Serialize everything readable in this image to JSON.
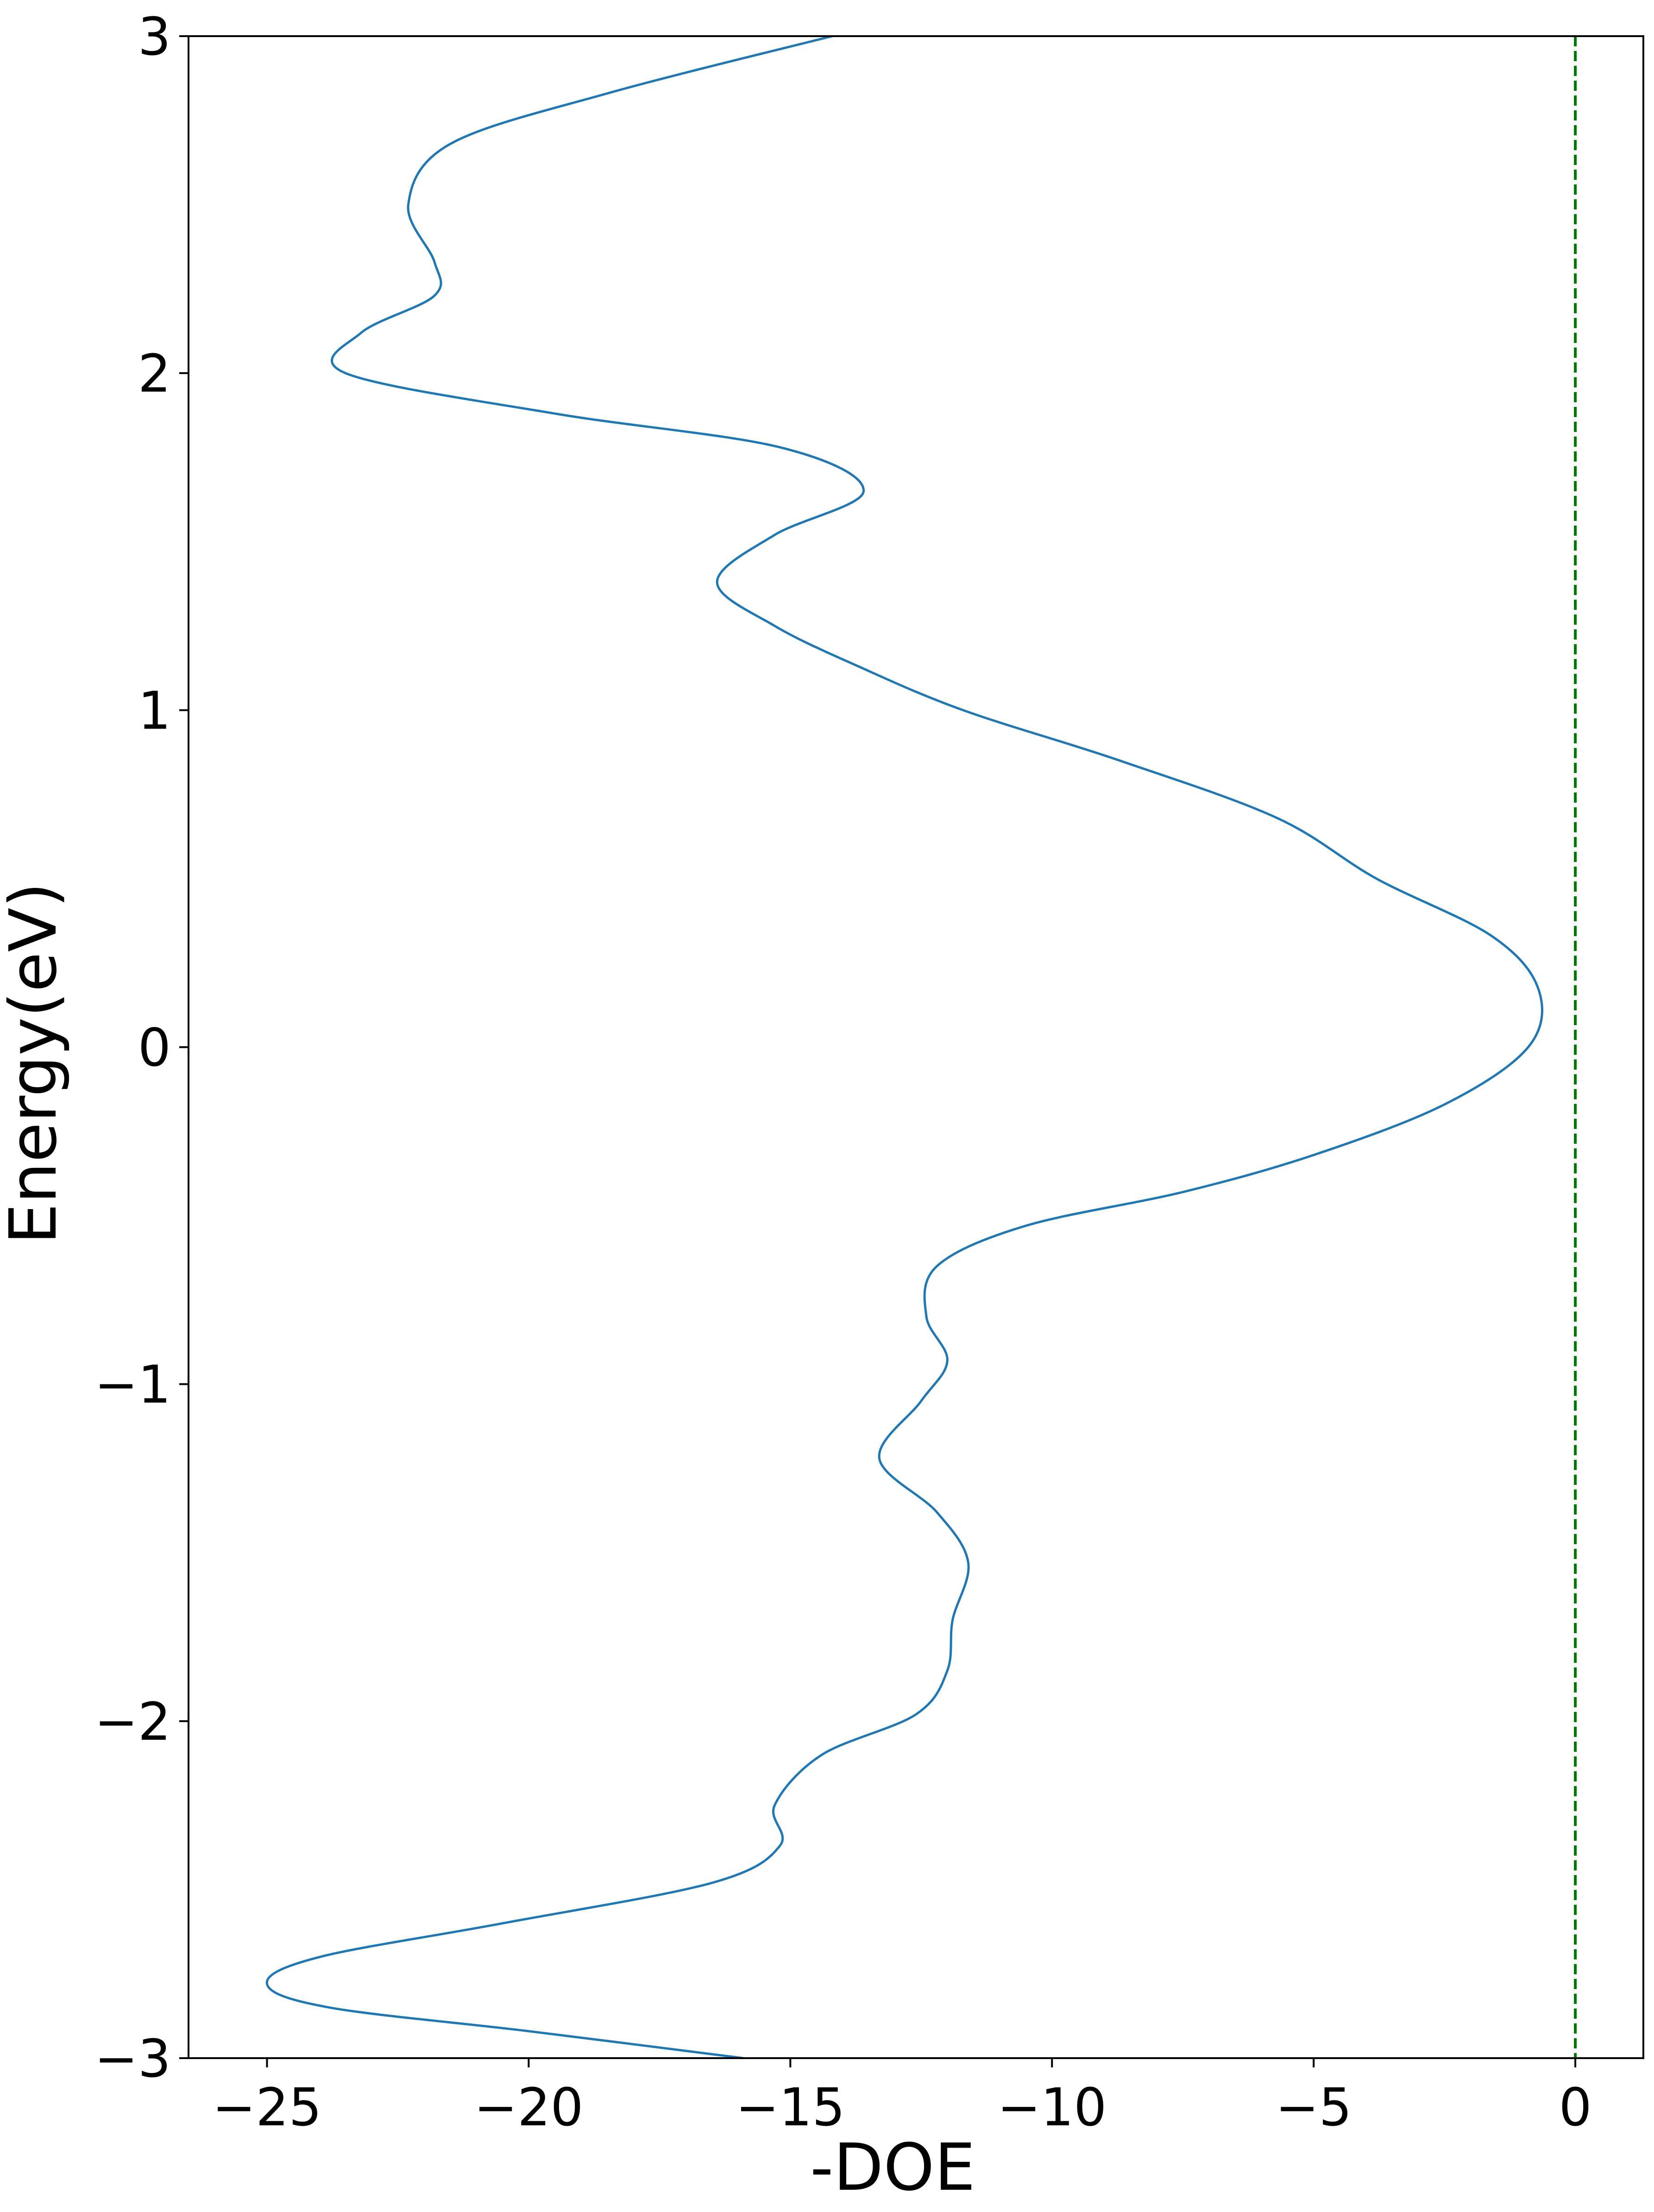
{
  "chart_data": {
    "type": "line",
    "orientation": "vertical-energy",
    "title": "",
    "xlabel": "-DOE",
    "ylabel": "Energy(eV)",
    "xlim": [
      -26.5,
      1.3
    ],
    "ylim": [
      -3,
      3
    ],
    "x_ticks": [
      {
        "value": -25,
        "label": "−25"
      },
      {
        "value": -20,
        "label": "−20"
      },
      {
        "value": -15,
        "label": "−15"
      },
      {
        "value": -10,
        "label": "−10"
      },
      {
        "value": -5,
        "label": "−5"
      },
      {
        "value": 0,
        "label": "0"
      }
    ],
    "y_ticks": [
      {
        "value": -3,
        "label": "−3"
      },
      {
        "value": -2,
        "label": "−2"
      },
      {
        "value": -1,
        "label": "−1"
      },
      {
        "value": 0,
        "label": "0"
      },
      {
        "value": 1,
        "label": "1"
      },
      {
        "value": 2,
        "label": "2"
      },
      {
        "value": 3,
        "label": "3"
      }
    ],
    "grid": false,
    "series": [
      {
        "color": "#1f77b4",
        "points": [
          {
            "doe": -15.9,
            "energy": -3.0
          },
          {
            "doe": -20.0,
            "energy": -2.92
          },
          {
            "doe": -23.8,
            "energy": -2.85
          },
          {
            "doe": -25.0,
            "energy": -2.78
          },
          {
            "doe": -24.0,
            "energy": -2.7
          },
          {
            "doe": -20.5,
            "energy": -2.6
          },
          {
            "doe": -16.5,
            "energy": -2.48
          },
          {
            "doe": -15.2,
            "energy": -2.37
          },
          {
            "doe": -15.3,
            "energy": -2.25
          },
          {
            "doe": -14.4,
            "energy": -2.1
          },
          {
            "doe": -12.6,
            "energy": -1.98
          },
          {
            "doe": -12.0,
            "energy": -1.85
          },
          {
            "doe": -11.9,
            "energy": -1.7
          },
          {
            "doe": -11.6,
            "energy": -1.53
          },
          {
            "doe": -12.2,
            "energy": -1.38
          },
          {
            "doe": -13.3,
            "energy": -1.22
          },
          {
            "doe": -12.5,
            "energy": -1.05
          },
          {
            "doe": -12.0,
            "energy": -0.93
          },
          {
            "doe": -12.4,
            "energy": -0.8
          },
          {
            "doe": -12.2,
            "energy": -0.65
          },
          {
            "doe": -10.5,
            "energy": -0.53
          },
          {
            "doe": -7.5,
            "energy": -0.43
          },
          {
            "doe": -5.0,
            "energy": -0.32
          },
          {
            "doe": -2.5,
            "energy": -0.17
          },
          {
            "doe": -0.9,
            "energy": 0.0
          },
          {
            "doe": -0.7,
            "energy": 0.17
          },
          {
            "doe": -1.6,
            "energy": 0.33
          },
          {
            "doe": -3.8,
            "energy": 0.5
          },
          {
            "doe": -5.7,
            "energy": 0.68
          },
          {
            "doe": -8.7,
            "energy": 0.85
          },
          {
            "doe": -11.7,
            "energy": 1.0
          },
          {
            "doe": -13.7,
            "energy": 1.13
          },
          {
            "doe": -15.3,
            "energy": 1.25
          },
          {
            "doe": -16.4,
            "energy": 1.38
          },
          {
            "doe": -15.3,
            "energy": 1.52
          },
          {
            "doe": -13.6,
            "energy": 1.65
          },
          {
            "doe": -15.2,
            "energy": 1.78
          },
          {
            "doe": -19.5,
            "energy": 1.88
          },
          {
            "doe": -23.5,
            "energy": 2.0
          },
          {
            "doe": -23.2,
            "energy": 2.12
          },
          {
            "doe": -21.8,
            "energy": 2.23
          },
          {
            "doe": -21.8,
            "energy": 2.33
          },
          {
            "doe": -22.3,
            "energy": 2.5
          },
          {
            "doe": -21.5,
            "energy": 2.68
          },
          {
            "doe": -18.5,
            "energy": 2.83
          },
          {
            "doe": -14.2,
            "energy": 3.0
          }
        ]
      }
    ],
    "reference_lines": [
      {
        "orientation": "vertical",
        "doe": 0,
        "color": "#007700",
        "style": "dashed"
      }
    ]
  }
}
